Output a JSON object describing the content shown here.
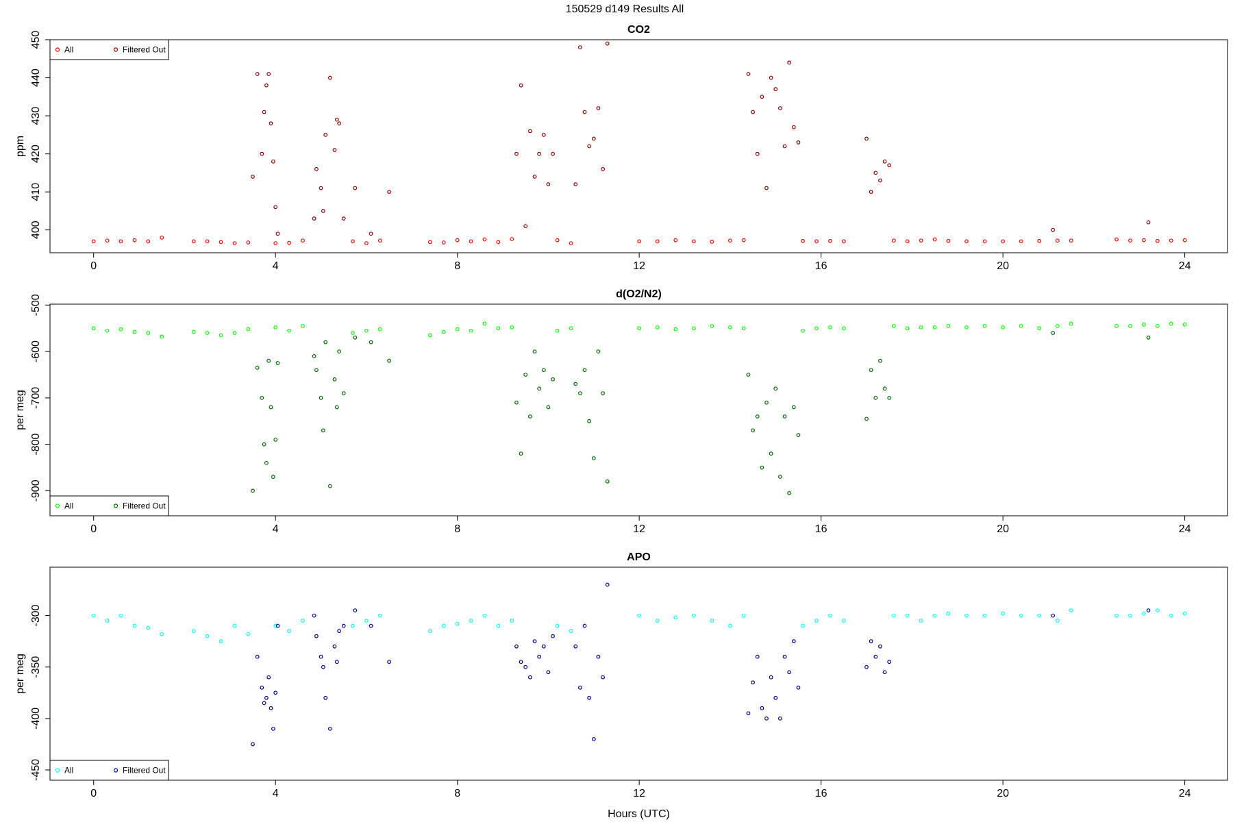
{
  "title": "150529   d149   Results All",
  "chart_data": [
    {
      "type": "scatter",
      "title": "CO2",
      "y_label": "ppm",
      "legend": "topleft",
      "xlim": [
        -0.96,
        24.94
      ],
      "xticks": [
        0,
        4,
        8,
        12,
        16,
        20,
        24
      ],
      "ylim": [
        394,
        450
      ],
      "yticks": [
        400,
        410,
        420,
        430,
        440,
        450
      ],
      "series": [
        {
          "name": "All",
          "color": "#ff0000",
          "x": [
            0,
            0.3,
            0.6,
            0.9,
            1.2,
            1.5,
            2.2,
            2.5,
            2.8,
            3.1,
            3.4,
            4.0,
            4.3,
            4.6,
            5.7,
            6.0,
            6.3,
            7.4,
            7.7,
            8.0,
            8.3,
            8.6,
            8.9,
            9.2,
            10.2,
            10.5,
            12.0,
            12.4,
            12.8,
            13.2,
            13.6,
            14.0,
            14.3,
            15.6,
            15.9,
            16.2,
            16.5,
            17.6,
            17.9,
            18.2,
            18.5,
            18.8,
            19.2,
            19.6,
            20.0,
            20.4,
            20.8,
            21.2,
            21.5,
            22.5,
            22.8,
            23.1,
            23.4,
            23.7,
            24.0
          ],
          "values": [
            397,
            397.2,
            397,
            397.3,
            397,
            398,
            397,
            397,
            396.8,
            396.5,
            396.7,
            396.5,
            396.6,
            397.2,
            397,
            396.5,
            397.2,
            396.8,
            396.7,
            397.3,
            397,
            397.5,
            396.8,
            397.6,
            397.3,
            396.5,
            397,
            397,
            397.3,
            397,
            396.9,
            397.2,
            397.3,
            397.1,
            397,
            397.1,
            397,
            397.2,
            397,
            397.2,
            397.5,
            397.1,
            397,
            397,
            397,
            397,
            397.1,
            397.2,
            397.2,
            397.5,
            397.2,
            397.3,
            397.1,
            397.2,
            397.3
          ]
        },
        {
          "name": "Filtered Out",
          "color": "#8b0000",
          "x": [
            3.5,
            3.6,
            3.7,
            3.75,
            3.8,
            3.85,
            3.9,
            3.95,
            4.0,
            4.05,
            4.85,
            4.9,
            5.0,
            5.05,
            5.1,
            5.2,
            5.3,
            5.35,
            5.4,
            5.5,
            5.75,
            6.1,
            6.5,
            9.3,
            9.4,
            9.5,
            9.6,
            9.7,
            9.8,
            9.9,
            10.0,
            10.1,
            10.6,
            10.7,
            10.8,
            10.9,
            11.0,
            11.1,
            11.2,
            11.3,
            14.4,
            14.5,
            14.6,
            14.7,
            14.8,
            14.9,
            15.0,
            15.1,
            15.2,
            15.3,
            15.4,
            15.5,
            17.0,
            17.1,
            17.2,
            17.3,
            17.4,
            17.5,
            21.1,
            23.2
          ],
          "values": [
            414,
            441,
            420,
            431,
            438,
            441,
            428,
            418,
            406,
            399,
            403,
            416,
            411,
            405,
            425,
            440,
            421,
            429,
            428,
            403,
            411,
            399,
            410,
            420,
            438,
            401,
            426,
            414,
            420,
            425,
            412,
            420,
            412,
            448,
            431,
            422,
            424,
            432,
            416,
            449,
            441,
            431,
            420,
            435,
            411,
            440,
            437,
            432,
            422,
            444,
            427,
            423,
            424,
            410,
            415,
            413,
            418,
            417,
            400,
            402
          ]
        }
      ]
    },
    {
      "type": "scatter",
      "title": "d(O2/N2)",
      "y_label": "per meg",
      "legend": "bottomleft",
      "xlim": [
        -0.96,
        24.94
      ],
      "xticks": [
        0,
        4,
        8,
        12,
        16,
        20,
        24
      ],
      "ylim": [
        -954,
        -498
      ],
      "yticks": [
        -500,
        -600,
        -700,
        -800,
        -900
      ],
      "series": [
        {
          "name": "All",
          "color": "#00ff00",
          "x": [
            0,
            0.3,
            0.6,
            0.9,
            1.2,
            1.5,
            2.2,
            2.5,
            2.8,
            3.1,
            3.4,
            4.0,
            4.3,
            4.6,
            5.7,
            6.0,
            6.3,
            7.4,
            7.7,
            8.0,
            8.3,
            8.6,
            8.9,
            9.2,
            10.2,
            10.5,
            12.0,
            12.4,
            12.8,
            13.2,
            13.6,
            14.0,
            14.3,
            15.6,
            15.9,
            16.2,
            16.5,
            17.6,
            17.9,
            18.2,
            18.5,
            18.8,
            19.2,
            19.6,
            20.0,
            20.4,
            20.8,
            21.2,
            21.5,
            22.5,
            22.8,
            23.1,
            23.4,
            23.7,
            24.0
          ],
          "values": [
            -550,
            -555,
            -552,
            -558,
            -560,
            -568,
            -558,
            -560,
            -565,
            -560,
            -552,
            -548,
            -555,
            -545,
            -560,
            -555,
            -552,
            -565,
            -558,
            -552,
            -555,
            -540,
            -550,
            -548,
            -555,
            -550,
            -550,
            -548,
            -552,
            -550,
            -545,
            -548,
            -550,
            -555,
            -550,
            -548,
            -550,
            -545,
            -550,
            -548,
            -548,
            -545,
            -548,
            -545,
            -548,
            -545,
            -550,
            -545,
            -540,
            -545,
            -545,
            -542,
            -545,
            -540,
            -542
          ]
        },
        {
          "name": "Filtered Out",
          "color": "#006400",
          "x": [
            3.5,
            3.6,
            3.7,
            3.75,
            3.8,
            3.85,
            3.9,
            3.95,
            4.0,
            4.05,
            4.85,
            4.9,
            5.0,
            5.05,
            5.1,
            5.2,
            5.3,
            5.35,
            5.4,
            5.5,
            5.75,
            6.1,
            6.5,
            9.3,
            9.4,
            9.5,
            9.6,
            9.7,
            9.8,
            9.9,
            10.0,
            10.1,
            10.6,
            10.7,
            10.8,
            10.9,
            11.0,
            11.1,
            11.2,
            11.3,
            14.4,
            14.5,
            14.6,
            14.7,
            14.8,
            14.9,
            15.0,
            15.1,
            15.2,
            15.3,
            15.4,
            15.5,
            17.0,
            17.1,
            17.2,
            17.3,
            17.4,
            17.5,
            21.1,
            23.2
          ],
          "values": [
            -900,
            -635,
            -700,
            -800,
            -840,
            -620,
            -720,
            -870,
            -790,
            -625,
            -610,
            -640,
            -700,
            -770,
            -580,
            -890,
            -660,
            -720,
            -600,
            -690,
            -570,
            -580,
            -620,
            -710,
            -820,
            -650,
            -740,
            -600,
            -680,
            -640,
            -720,
            -660,
            -670,
            -690,
            -640,
            -750,
            -830,
            -600,
            -690,
            -880,
            -650,
            -770,
            -740,
            -850,
            -710,
            -820,
            -680,
            -870,
            -740,
            -905,
            -720,
            -780,
            -745,
            -640,
            -700,
            -620,
            -680,
            -700,
            -560,
            -570
          ]
        }
      ]
    },
    {
      "type": "scatter",
      "title": "APO",
      "y_label": "per meg",
      "x_label": "Hours (UTC)",
      "legend": "bottomleft",
      "xlim": [
        -0.96,
        24.94
      ],
      "xticks": [
        0,
        4,
        8,
        12,
        16,
        20,
        24
      ],
      "ylim": [
        -460,
        -253
      ],
      "yticks": [
        -300,
        -350,
        -400,
        -450
      ],
      "series": [
        {
          "name": "All",
          "color": "#00ffff",
          "x": [
            0,
            0.3,
            0.6,
            0.9,
            1.2,
            1.5,
            2.2,
            2.5,
            2.8,
            3.1,
            3.4,
            4.0,
            4.3,
            4.6,
            5.7,
            6.0,
            6.3,
            7.4,
            7.7,
            8.0,
            8.3,
            8.6,
            8.9,
            9.2,
            10.2,
            10.5,
            12.0,
            12.4,
            12.8,
            13.2,
            13.6,
            14.0,
            14.3,
            15.6,
            15.9,
            16.2,
            16.5,
            17.6,
            17.9,
            18.2,
            18.5,
            18.8,
            19.2,
            19.6,
            20.0,
            20.4,
            20.8,
            21.2,
            21.5,
            22.5,
            22.8,
            23.1,
            23.4,
            23.7,
            24.0
          ],
          "values": [
            -300,
            -305,
            -300,
            -310,
            -312,
            -318,
            -315,
            -320,
            -325,
            -310,
            -318,
            -310,
            -315,
            -305,
            -310,
            -305,
            -300,
            -315,
            -310,
            -308,
            -305,
            -300,
            -310,
            -305,
            -310,
            -315,
            -300,
            -305,
            -302,
            -300,
            -305,
            -310,
            -300,
            -310,
            -305,
            -300,
            -305,
            -300,
            -300,
            -305,
            -300,
            -298,
            -300,
            -300,
            -298,
            -300,
            -300,
            -305,
            -295,
            -300,
            -300,
            -298,
            -295,
            -300,
            -298
          ]
        },
        {
          "name": "Filtered Out",
          "color": "#00008b",
          "x": [
            3.5,
            3.6,
            3.7,
            3.75,
            3.8,
            3.85,
            3.9,
            3.95,
            4.0,
            4.05,
            4.85,
            4.9,
            5.0,
            5.05,
            5.1,
            5.2,
            5.3,
            5.35,
            5.4,
            5.5,
            5.75,
            6.1,
            6.5,
            9.3,
            9.4,
            9.5,
            9.6,
            9.7,
            9.8,
            9.9,
            10.0,
            10.1,
            10.6,
            10.7,
            10.8,
            10.9,
            11.0,
            11.1,
            11.2,
            11.3,
            14.4,
            14.5,
            14.6,
            14.7,
            14.8,
            14.9,
            15.0,
            15.1,
            15.2,
            15.3,
            15.4,
            15.5,
            17.0,
            17.1,
            17.2,
            17.3,
            17.4,
            17.5,
            21.1,
            23.2
          ],
          "values": [
            -425,
            -340,
            -370,
            -385,
            -380,
            -360,
            -390,
            -410,
            -375,
            -310,
            -300,
            -320,
            -340,
            -350,
            -380,
            -410,
            -330,
            -345,
            -315,
            -310,
            -295,
            -310,
            -345,
            -330,
            -345,
            -350,
            -360,
            -325,
            -340,
            -330,
            -355,
            -320,
            -330,
            -370,
            -310,
            -380,
            -420,
            -340,
            -360,
            -270,
            -395,
            -365,
            -340,
            -390,
            -400,
            -360,
            -380,
            -400,
            -340,
            -355,
            -325,
            -370,
            -350,
            -325,
            -340,
            -330,
            -355,
            -345,
            -300,
            -295
          ]
        }
      ]
    }
  ]
}
